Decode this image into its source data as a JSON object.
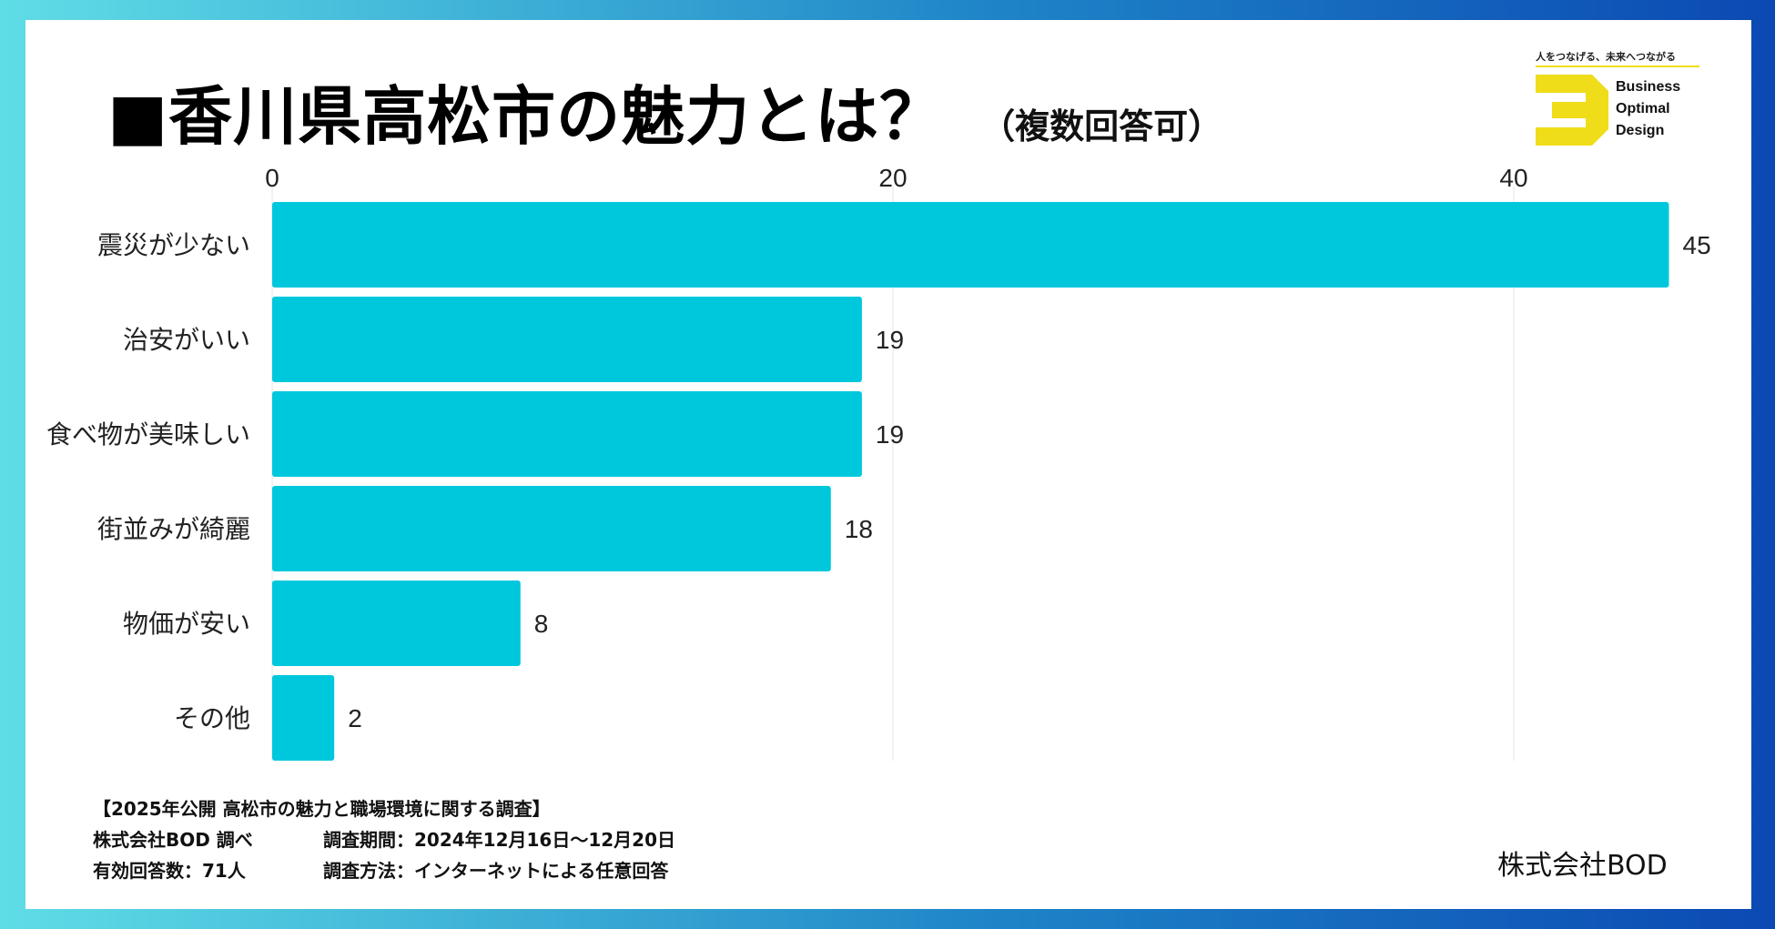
{
  "title": "■香川県高松市の魅力とは？",
  "subtitle": "（複数回答可）",
  "logo": {
    "tagline": "人をつなげる、未来へつながる",
    "lines": [
      "Business",
      "Optimal",
      "Design"
    ],
    "accent_color": "#f0dd1a"
  },
  "chart_data": {
    "type": "bar",
    "orientation": "horizontal",
    "title": "■香川県高松市の魅力とは？",
    "subtitle": "（複数回答可）",
    "categories": [
      "震災が少ない",
      "治安がいい",
      "食べ物が美味しい",
      "街並みが綺麗",
      "物価が安い",
      "その他"
    ],
    "values": [
      45,
      19,
      19,
      18,
      8,
      2
    ],
    "x_ticks": [
      0,
      20,
      40
    ],
    "xlim": [
      0,
      45
    ],
    "xlabel": "",
    "ylabel": "",
    "bar_color": "#00c8dc",
    "grid": true,
    "tick_position": "top"
  },
  "footer": {
    "survey_title": "【2025年公開 高松市の魅力と職場環境に関する調査】",
    "researcher": "株式会社BOD 調べ",
    "period": "調査期間：2024年12月16日～12月20日",
    "respondents": "有効回答数：71人",
    "method": "調査方法：インターネットによる任意回答"
  },
  "brand": "株式会社BOD"
}
